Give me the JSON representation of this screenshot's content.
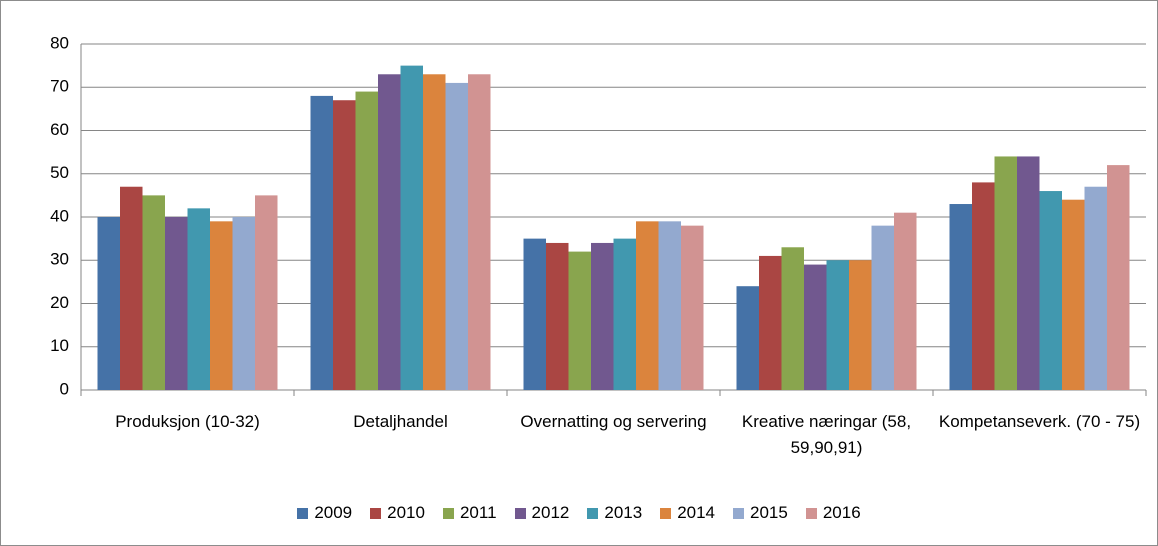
{
  "chart_data": {
    "type": "bar",
    "categories": [
      "Produksjon (10-32)",
      "Detaljhandel",
      "Overnatting og servering",
      "Kreative næringar (58, 59,90,91)",
      "Kompetanseverk. (70 - 75)"
    ],
    "series": [
      {
        "name": "2009",
        "color": "#4572a7",
        "values": [
          40,
          68,
          35,
          24,
          43
        ]
      },
      {
        "name": "2010",
        "color": "#aa4643",
        "values": [
          47,
          67,
          34,
          31,
          48
        ]
      },
      {
        "name": "2011",
        "color": "#89a54e",
        "values": [
          45,
          69,
          32,
          33,
          54
        ]
      },
      {
        "name": "2012",
        "color": "#71588f",
        "values": [
          40,
          73,
          34,
          29,
          54
        ]
      },
      {
        "name": "2013",
        "color": "#4198af",
        "values": [
          42,
          75,
          35,
          30,
          46
        ]
      },
      {
        "name": "2014",
        "color": "#db843d",
        "values": [
          39,
          73,
          39,
          30,
          44
        ]
      },
      {
        "name": "2015",
        "color": "#93a9cf",
        "values": [
          40,
          71,
          39,
          38,
          47
        ]
      },
      {
        "name": "2016",
        "color": "#d19392",
        "values": [
          45,
          73,
          38,
          41,
          52
        ]
      }
    ],
    "ylim": [
      0,
      80
    ],
    "yticks": [
      0,
      10,
      20,
      30,
      40,
      50,
      60,
      70,
      80
    ],
    "grid": true,
    "legend": "bottom"
  }
}
